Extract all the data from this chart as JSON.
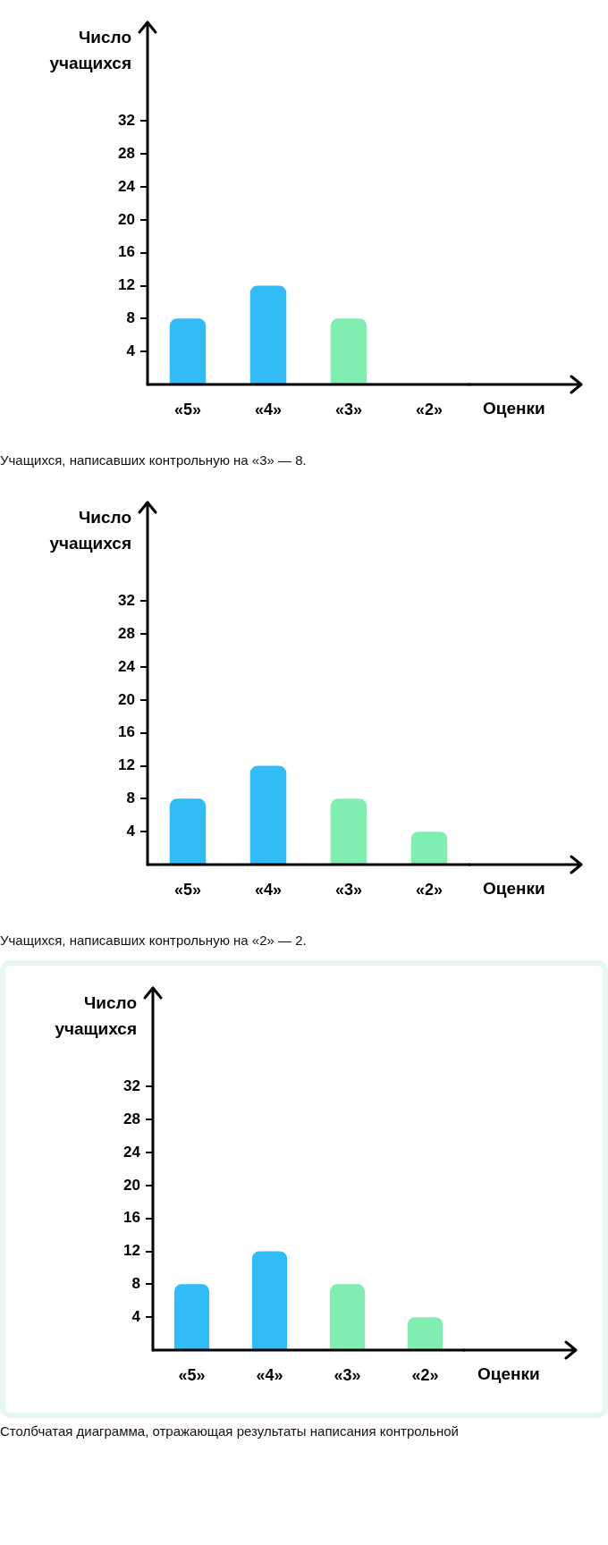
{
  "chart_data": [
    {
      "type": "bar",
      "categories": [
        "«5»",
        "«4»",
        "«3»",
        "«2»"
      ],
      "values": [
        8,
        12,
        8,
        null
      ],
      "colors": [
        "#33bbf5",
        "#33bbf5",
        "#80eeb0",
        "#80eeb0"
      ],
      "ylim": [
        0,
        44
      ],
      "yticks": [
        4,
        8,
        12,
        16,
        20,
        24,
        28,
        32
      ],
      "xlabel": "Оценки",
      "ylabel": "Число учащихся",
      "annotations": [
        "Учащихся, написавших контрольную на «3» — 8."
      ]
    },
    {
      "type": "bar",
      "categories": [
        "«5»",
        "«4»",
        "«3»",
        "«2»"
      ],
      "values": [
        8,
        12,
        8,
        4
      ],
      "colors": [
        "#33bbf5",
        "#33bbf5",
        "#80eeb0",
        "#80eeb0"
      ],
      "ylim": [
        0,
        44
      ],
      "yticks": [
        4,
        8,
        12,
        16,
        20,
        24,
        28,
        32
      ],
      "xlabel": "Оценки",
      "ylabel": "Число учащихся",
      "annotations": [
        "Учащихся, написавших контрольную на «2» — 2."
      ]
    },
    {
      "type": "bar",
      "categories": [
        "«5»",
        "«4»",
        "«3»",
        "«2»"
      ],
      "values": [
        8,
        12,
        8,
        4
      ],
      "colors": [
        "#33bbf5",
        "#33bbf5",
        "#80eeb0",
        "#80eeb0"
      ],
      "ylim": [
        0,
        44
      ],
      "yticks": [
        4,
        8,
        12,
        16,
        20,
        24,
        28,
        32
      ],
      "xlabel": "Оценки",
      "ylabel": "Число учащихся",
      "annotations": [
        "Столбчатая диаграмма, отражающая результаты написания контрольной"
      ]
    }
  ]
}
